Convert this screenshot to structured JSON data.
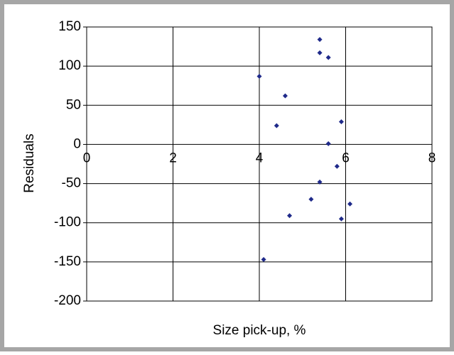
{
  "chart_data": {
    "type": "scatter",
    "xlabel": "Size pick-up, %",
    "ylabel": "Residuals",
    "x": [
      4.0,
      4.4,
      4.6,
      4.1,
      4.7,
      5.2,
      5.4,
      5.4,
      5.4,
      5.6,
      5.6,
      5.8,
      5.9,
      5.9,
      6.1
    ],
    "values": [
      87,
      24,
      62,
      -147,
      -91,
      -70,
      -48,
      134,
      117,
      111,
      1,
      -28,
      29,
      -95,
      -76
    ],
    "color": "#1f2a8a",
    "xlim": [
      0,
      8
    ],
    "xticks": [
      0,
      2,
      4,
      6,
      8
    ],
    "ylim": [
      -200,
      150
    ],
    "yticks": [
      150,
      100,
      50,
      0,
      -50,
      -100,
      -150,
      -200
    ],
    "grid": true
  }
}
